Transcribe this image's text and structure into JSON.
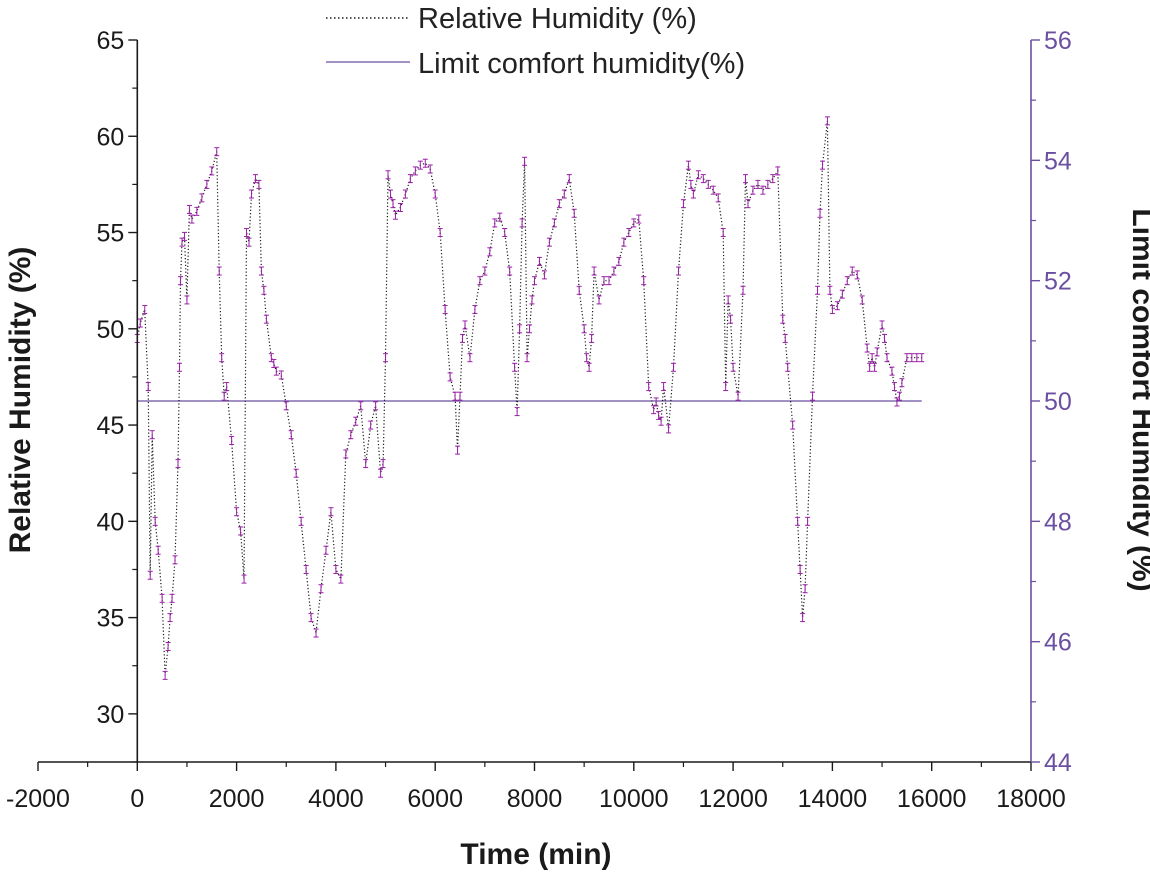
{
  "chart_data": {
    "type": "line",
    "title": "",
    "xlabel": "Time (min)",
    "ylabel": "Relative Humidity (%)",
    "ylabel_right": "Limit comfort Humidity (%)",
    "xlim": [
      -2000,
      18000
    ],
    "ylim": [
      27.5,
      65
    ],
    "ylim_right": [
      44,
      56
    ],
    "x_ticks": [
      "-2000",
      "0",
      "2000",
      "4000",
      "6000",
      "8000",
      "10000",
      "12000",
      "14000",
      "16000",
      "18000"
    ],
    "y_ticks": [
      "30",
      "35",
      "40",
      "45",
      "50",
      "55",
      "60",
      "65"
    ],
    "y_ticks_right": [
      "44",
      "46",
      "48",
      "50",
      "52",
      "54",
      "56"
    ],
    "grid": false,
    "legend_position": "top-center",
    "colors": {
      "series": "#9b1fa8",
      "line": "#1a1a1a",
      "limit": "#6b4fa0",
      "right_axis": "#6b4fa0"
    },
    "series": [
      {
        "name": "Relative Humidity (%)",
        "axis": "left",
        "style": "dotted-with-error-markers",
        "x": [
          0,
          60,
          150,
          220,
          260,
          300,
          360,
          420,
          500,
          560,
          620,
          660,
          700,
          760,
          820,
          850,
          870,
          900,
          950,
          1000,
          1050,
          1100,
          1200,
          1300,
          1400,
          1500,
          1600,
          1650,
          1700,
          1750,
          1800,
          1900,
          2000,
          2080,
          2150,
          2200,
          2250,
          2300,
          2380,
          2450,
          2500,
          2550,
          2600,
          2700,
          2750,
          2800,
          2900,
          3000,
          3100,
          3200,
          3300,
          3400,
          3500,
          3600,
          3700,
          3800,
          3900,
          4000,
          4100,
          4200,
          4300,
          4400,
          4500,
          4600,
          4700,
          4800,
          4900,
          4950,
          5000,
          5050,
          5100,
          5150,
          5200,
          5300,
          5400,
          5500,
          5600,
          5700,
          5800,
          5900,
          6000,
          6100,
          6200,
          6300,
          6400,
          6450,
          6500,
          6550,
          6600,
          6700,
          6800,
          6900,
          7000,
          7100,
          7200,
          7300,
          7400,
          7500,
          7600,
          7650,
          7700,
          7750,
          7800,
          7850,
          7900,
          7950,
          8000,
          8100,
          8200,
          8300,
          8400,
          8500,
          8600,
          8700,
          8800,
          8900,
          9000,
          9050,
          9100,
          9150,
          9200,
          9300,
          9400,
          9500,
          9600,
          9700,
          9800,
          9900,
          10000,
          10100,
          10200,
          10300,
          10400,
          10450,
          10500,
          10550,
          10600,
          10700,
          10800,
          10900,
          11000,
          11100,
          11150,
          11200,
          11300,
          11400,
          11500,
          11600,
          11700,
          11800,
          11850,
          11900,
          11950,
          12000,
          12100,
          12200,
          12250,
          12300,
          12400,
          12500,
          12600,
          12700,
          12800,
          12900,
          13000,
          13050,
          13100,
          13200,
          13300,
          13350,
          13400,
          13450,
          13500,
          13600,
          13700,
          13750,
          13800,
          13900,
          13950,
          14000,
          14100,
          14200,
          14300,
          14400,
          14500,
          14600,
          14700,
          14750,
          14800,
          14850,
          14900,
          15000,
          15050,
          15100,
          15200,
          15250,
          15300,
          15350,
          15400,
          15500,
          15600,
          15700,
          15800
        ],
        "y": [
          49.5,
          50.3,
          51.0,
          47.0,
          37.2,
          44.5,
          40.0,
          38.5,
          36.0,
          32.0,
          33.5,
          35.0,
          36.0,
          38.0,
          43.0,
          48.0,
          52.5,
          54.5,
          54.8,
          51.5,
          56.2,
          55.7,
          56.1,
          56.8,
          57.5,
          58.2,
          59.2,
          53.0,
          48.5,
          46.5,
          47.0,
          44.2,
          40.5,
          39.5,
          37.0,
          55.0,
          54.5,
          57.0,
          57.8,
          57.5,
          53.0,
          52.0,
          50.5,
          48.5,
          48.2,
          47.8,
          47.6,
          46.0,
          44.5,
          42.5,
          40.0,
          37.5,
          35.0,
          34.2,
          36.5,
          38.5,
          40.5,
          37.5,
          37.0,
          43.5,
          44.5,
          45.2,
          46.0,
          43.0,
          45.0,
          46.0,
          42.5,
          43.0,
          48.5,
          58.0,
          57.0,
          56.5,
          55.9,
          56.3,
          57.0,
          57.8,
          58.2,
          58.5,
          58.6,
          58.3,
          57.0,
          55.0,
          51.0,
          47.5,
          46.5,
          43.7,
          46.5,
          49.5,
          50.2,
          48.5,
          51.0,
          52.5,
          53.0,
          54.0,
          55.5,
          55.8,
          55.0,
          53.0,
          48.0,
          45.7,
          50.0,
          55.5,
          58.7,
          48.5,
          50.0,
          51.5,
          52.5,
          53.5,
          52.8,
          54.5,
          55.5,
          56.5,
          57.0,
          57.8,
          56.0,
          52.0,
          50.0,
          48.5,
          48.0,
          49.5,
          53.0,
          51.5,
          52.5,
          52.5,
          53.0,
          53.5,
          54.5,
          55.0,
          55.5,
          55.7,
          52.5,
          47.0,
          45.8,
          46.2,
          45.5,
          45.2,
          47.0,
          44.8,
          48.0,
          53.0,
          56.5,
          58.5,
          57.5,
          57.0,
          58.0,
          57.8,
          57.5,
          57.2,
          56.8,
          55.0,
          47.0,
          51.5,
          50.5,
          48.0,
          46.5,
          52.0,
          57.8,
          56.5,
          57.2,
          57.5,
          57.2,
          57.5,
          57.8,
          58.2,
          50.5,
          49.5,
          48.0,
          45.0,
          40.0,
          37.5,
          35.0,
          36.5,
          40.0,
          46.5,
          52.0,
          56.0,
          58.5,
          60.8,
          52.0,
          51.0,
          51.2,
          51.8,
          52.5,
          53.0,
          52.8,
          51.5,
          49.0,
          48.0,
          48.5,
          48.0,
          48.8,
          50.2,
          49.5,
          48.5,
          47.8,
          47.0,
          46.2,
          46.5,
          47.2,
          48.5,
          48.5,
          48.5,
          48.5
        ]
      },
      {
        "name": "Limit comfort humidity(%)",
        "axis": "right",
        "style": "solid",
        "x": [
          0,
          15800
        ],
        "y": [
          50,
          50
        ]
      }
    ]
  }
}
